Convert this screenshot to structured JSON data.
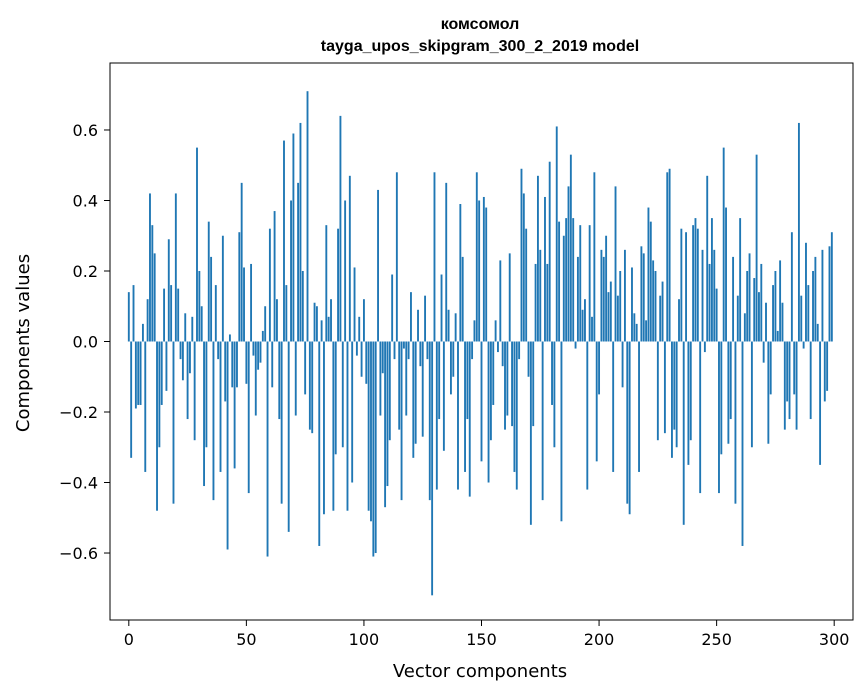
{
  "chart_data": {
    "type": "bar",
    "title": "комсомол",
    "subtitle": "tayga_upos_skipgram_300_2_2019 model",
    "xlabel": "Vector components",
    "ylabel": "Components values",
    "xlim": [
      -8,
      308
    ],
    "ylim": [
      -0.79,
      0.79
    ],
    "xticks": [
      0,
      50,
      100,
      150,
      200,
      250,
      300
    ],
    "xtick_labels": [
      "0",
      "50",
      "100",
      "150",
      "200",
      "250",
      "300"
    ],
    "yticks": [
      -0.6,
      -0.4,
      -0.2,
      0.0,
      0.2,
      0.4,
      0.6
    ],
    "ytick_labels": [
      "−0.6",
      "−0.4",
      "−0.2",
      "0.0",
      "0.2",
      "0.4",
      "0.6"
    ],
    "bar_color": "#1f77b4",
    "grid": false,
    "x": "0..299",
    "values": [
      0.14,
      -0.33,
      0.16,
      -0.19,
      -0.18,
      -0.18,
      0.05,
      -0.37,
      0.12,
      0.42,
      0.33,
      0.25,
      -0.48,
      -0.3,
      -0.18,
      0.15,
      -0.14,
      0.29,
      0.16,
      -0.46,
      0.42,
      0.15,
      -0.05,
      -0.11,
      0.08,
      -0.22,
      -0.09,
      0.07,
      -0.28,
      0.55,
      0.2,
      0.1,
      -0.41,
      -0.3,
      0.34,
      0.24,
      -0.45,
      0.16,
      -0.05,
      -0.37,
      0.3,
      -0.17,
      -0.59,
      0.02,
      -0.13,
      -0.36,
      -0.13,
      0.31,
      0.45,
      0.21,
      -0.12,
      -0.43,
      0.22,
      -0.04,
      -0.21,
      -0.08,
      -0.06,
      0.03,
      0.1,
      -0.61,
      0.32,
      -0.13,
      0.37,
      0.12,
      -0.22,
      -0.46,
      0.57,
      0.16,
      -0.54,
      0.4,
      0.59,
      -0.21,
      0.45,
      0.62,
      0.2,
      -0.15,
      0.71,
      -0.25,
      -0.26,
      0.11,
      0.1,
      -0.58,
      0.06,
      -0.49,
      0.33,
      0.07,
      0.12,
      -0.48,
      -0.32,
      0.32,
      0.64,
      -0.3,
      0.4,
      -0.48,
      0.47,
      -0.4,
      0.21,
      -0.04,
      0.07,
      -0.1,
      0.12,
      -0.12,
      -0.48,
      -0.51,
      -0.61,
      -0.6,
      0.43,
      -0.21,
      -0.09,
      -0.47,
      -0.41,
      -0.28,
      0.19,
      -0.05,
      0.48,
      -0.25,
      -0.45,
      -0.02,
      -0.21,
      -0.05,
      0.14,
      -0.33,
      -0.29,
      0.09,
      -0.07,
      -0.27,
      0.13,
      -0.05,
      -0.45,
      -0.72,
      0.48,
      -0.42,
      -0.22,
      0.19,
      -0.31,
      0.45,
      0.09,
      -0.15,
      -0.1,
      0.08,
      -0.42,
      0.39,
      0.24,
      -0.37,
      -0.22,
      -0.44,
      -0.05,
      0.06,
      0.48,
      0.4,
      -0.34,
      0.41,
      0.38,
      -0.4,
      -0.28,
      -0.18,
      0.06,
      -0.03,
      0.23,
      -0.07,
      -0.25,
      -0.21,
      0.25,
      -0.24,
      -0.37,
      -0.42,
      -0.05,
      0.49,
      0.42,
      0.32,
      -0.1,
      -0.52,
      -0.24,
      0.22,
      0.47,
      0.26,
      -0.45,
      0.41,
      0.22,
      0.51,
      -0.18,
      -0.3,
      0.61,
      0.34,
      -0.51,
      0.3,
      0.35,
      0.44,
      0.53,
      0.35,
      -0.02,
      0.24,
      0.33,
      0.09,
      0.12,
      -0.42,
      0.33,
      0.07,
      0.48,
      -0.34,
      -0.15,
      0.26,
      0.24,
      0.3,
      0.14,
      0.17,
      -0.37,
      0.44,
      0.13,
      0.2,
      -0.13,
      0.26,
      -0.46,
      -0.49,
      0.21,
      0.08,
      0.05,
      -0.37,
      0.27,
      0.25,
      0.06,
      0.38,
      0.34,
      0.23,
      0.2,
      -0.28,
      0.13,
      0.17,
      -0.26,
      0.48,
      0.49,
      -0.33,
      -0.25,
      -0.3,
      0.12,
      0.32,
      -0.52,
      0.31,
      -0.35,
      -0.28,
      0.33,
      0.35,
      0.32,
      -0.43,
      0.26,
      -0.03,
      0.47,
      0.22,
      0.35,
      0.26,
      0.15,
      -0.43,
      -0.32,
      0.55,
      0.38,
      -0.29,
      -0.22,
      0.24,
      -0.46,
      0.13,
      0.35,
      -0.58,
      0.08,
      0.2,
      0.25,
      -0.3,
      0.18,
      0.53,
      0.14,
      0.22,
      -0.06,
      0.11,
      -0.29,
      -0.15,
      0.16,
      0.2,
      0.03,
      0.23,
      0.11,
      -0.25,
      -0.17,
      -0.22,
      0.31,
      -0.15,
      -0.25,
      0.62,
      0.13,
      -0.02,
      0.28,
      0.16,
      -0.22,
      0.2,
      0.24,
      0.05,
      -0.35,
      0.26,
      -0.17,
      -0.14,
      0.27,
      0.31
    ]
  }
}
